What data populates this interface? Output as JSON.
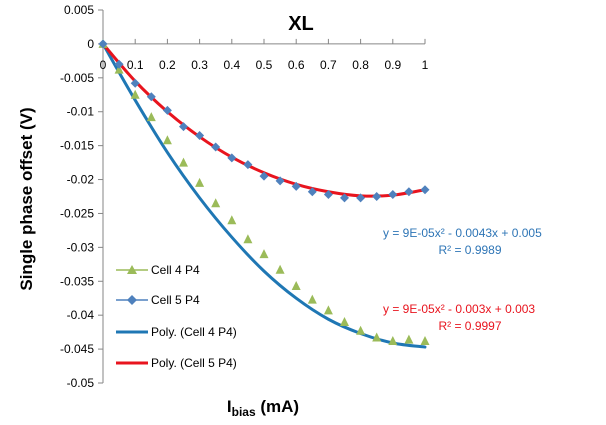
{
  "chart_data": {
    "type": "scatter",
    "title": "XL",
    "xlabel": {
      "main": "I",
      "sub": "bias",
      "unit": " (mA)"
    },
    "ylabel": "Single phase offset (V)",
    "xlim": [
      0,
      1
    ],
    "ylim": [
      -0.05,
      0.005
    ],
    "x_ticks": [
      "0",
      "0.1",
      "0.2",
      "0.3",
      "0.4",
      "0.5",
      "0.6",
      "0.7",
      "0.8",
      "0.9",
      "1"
    ],
    "y_ticks": [
      "0.005",
      "0",
      "-0.005",
      "-0.01",
      "-0.015",
      "-0.02",
      "-0.025",
      "-0.03",
      "-0.035",
      "-0.04",
      "-0.045",
      "-0.05"
    ],
    "grid": false,
    "legend_position": "bottom-left",
    "series": [
      {
        "name": "Cell 4 P4",
        "marker": "triangle",
        "color": "#9BBB59",
        "x": [
          0,
          0.05,
          0.1,
          0.15,
          0.2,
          0.25,
          0.3,
          0.35,
          0.4,
          0.45,
          0.5,
          0.55,
          0.6,
          0.65,
          0.7,
          0.75,
          0.8,
          0.85,
          0.9,
          0.95,
          1.0
        ],
        "y": [
          0,
          -0.0038,
          -0.0075,
          -0.0108,
          -0.0142,
          -0.0175,
          -0.0205,
          -0.0235,
          -0.026,
          -0.0288,
          -0.031,
          -0.0333,
          -0.0357,
          -0.0377,
          -0.0393,
          -0.041,
          -0.0423,
          -0.0433,
          -0.0438,
          -0.0436,
          -0.0438
        ]
      },
      {
        "name": "Cell 5 P4",
        "marker": "diamond",
        "color": "#4F81BD",
        "x": [
          0,
          0.05,
          0.1,
          0.15,
          0.2,
          0.25,
          0.3,
          0.35,
          0.4,
          0.45,
          0.5,
          0.55,
          0.6,
          0.65,
          0.7,
          0.75,
          0.8,
          0.85,
          0.9,
          0.95,
          1.0
        ],
        "y": [
          0,
          -0.003,
          -0.0058,
          -0.0078,
          -0.0098,
          -0.0122,
          -0.0135,
          -0.0152,
          -0.0168,
          -0.0178,
          -0.0195,
          -0.0202,
          -0.021,
          -0.0218,
          -0.0222,
          -0.0227,
          -0.0227,
          -0.0225,
          -0.0222,
          -0.0218,
          -0.0215
        ]
      }
    ],
    "trendlines": [
      {
        "name": "Poly. (Cell 4 P4)",
        "color": "#1F77B4",
        "equation": "y = 9E-05x² - 0.0043x + 0.005",
        "r2": "R² = 0.9989",
        "x": [
          0,
          0.1,
          0.2,
          0.3,
          0.4,
          0.5,
          0.6,
          0.7,
          0.8,
          0.9,
          1.0
        ],
        "y": [
          0,
          -0.0083,
          -0.016,
          -0.0227,
          -0.0285,
          -0.0335,
          -0.0375,
          -0.0406,
          -0.0427,
          -0.0441,
          -0.0447
        ]
      },
      {
        "name": "Poly. (Cell 5 P4)",
        "color": "#E8141E",
        "equation": "y = 9E-05x² - 0.003x + 0.003",
        "r2": "R² = 0.9997",
        "x": [
          0,
          0.1,
          0.2,
          0.3,
          0.4,
          0.5,
          0.6,
          0.7,
          0.8,
          0.9,
          1.0
        ],
        "y": [
          0,
          -0.0055,
          -0.01,
          -0.0137,
          -0.0167,
          -0.019,
          -0.0207,
          -0.0218,
          -0.0224,
          -0.0223,
          -0.0215
        ]
      }
    ]
  }
}
